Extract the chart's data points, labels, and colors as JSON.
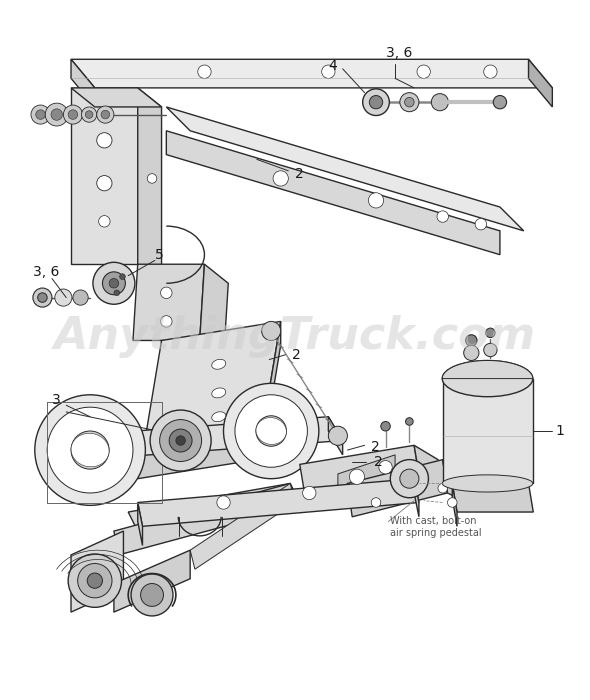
{
  "background_color": "#ffffff",
  "watermark_text": "AnythingTruck.com",
  "watermark_color": "#cccccc",
  "watermark_alpha": 0.5,
  "watermark_fontsize": 32,
  "label_color": "#1a1a1a",
  "label_fontsize": 10,
  "callout_color": "#333333",
  "annotation_fontsize": 7,
  "note_text": "With cast, bolt-on\nair spring pedestal",
  "figsize": [
    5.9,
    7.0
  ],
  "dpi": 100,
  "line_color": "#2a2a2a",
  "fill_light": "#e8e8e8",
  "fill_mid": "#d0d0d0",
  "fill_dark": "#b0b0b0",
  "fill_white": "#f8f8f8"
}
